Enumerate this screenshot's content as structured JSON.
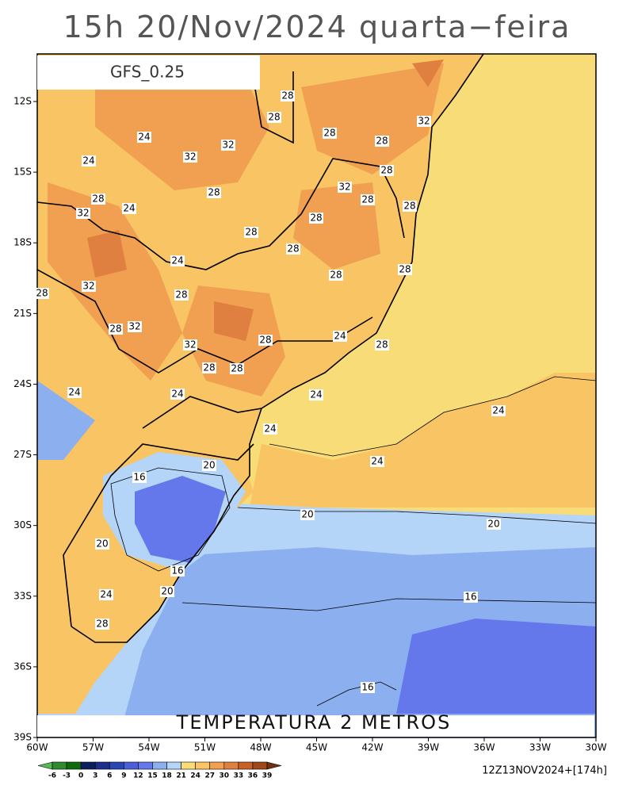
{
  "title": "15h 20/Nov/2024 quarta−feira",
  "model_label": "GFS_0.25",
  "field_label": "TEMPERATURA 2 METROS",
  "run_label": "12Z13NOV2024+[174h]",
  "lat_ticks": [
    "12S",
    "15S",
    "18S",
    "21S",
    "24S",
    "27S",
    "30S",
    "33S",
    "36S",
    "39S"
  ],
  "lon_ticks": [
    "60W",
    "57W",
    "54W",
    "51W",
    "48W",
    "45W",
    "42W",
    "39W",
    "36W",
    "33W",
    "30W"
  ],
  "colorbar": {
    "levels": [
      -6,
      -3,
      0,
      3,
      6,
      9,
      12,
      15,
      18,
      21,
      24,
      27,
      30,
      33,
      36,
      39
    ],
    "colors": [
      "#5cb85c",
      "#2e8b2e",
      "#0d6b0d",
      "#0a1f5c",
      "#1a2e8a",
      "#2846b4",
      "#4a5fd8",
      "#6478ec",
      "#8caff0",
      "#b4d4f8",
      "#f8dc78",
      "#f8c464",
      "#f0a050",
      "#e08040",
      "#c86028",
      "#a04818",
      "#6e3010"
    ]
  },
  "contour_labels": [
    28,
    28,
    28,
    32,
    24,
    32,
    28,
    24,
    32,
    28,
    28,
    32,
    28,
    28,
    32,
    24,
    28,
    28,
    28,
    28,
    24,
    28,
    28,
    32,
    28,
    28,
    32,
    28,
    24,
    28,
    32,
    28,
    28,
    28,
    24,
    24,
    24,
    24,
    24,
    20,
    24,
    16,
    20,
    20,
    20,
    16,
    20,
    24,
    16,
    28,
    16
  ]
}
